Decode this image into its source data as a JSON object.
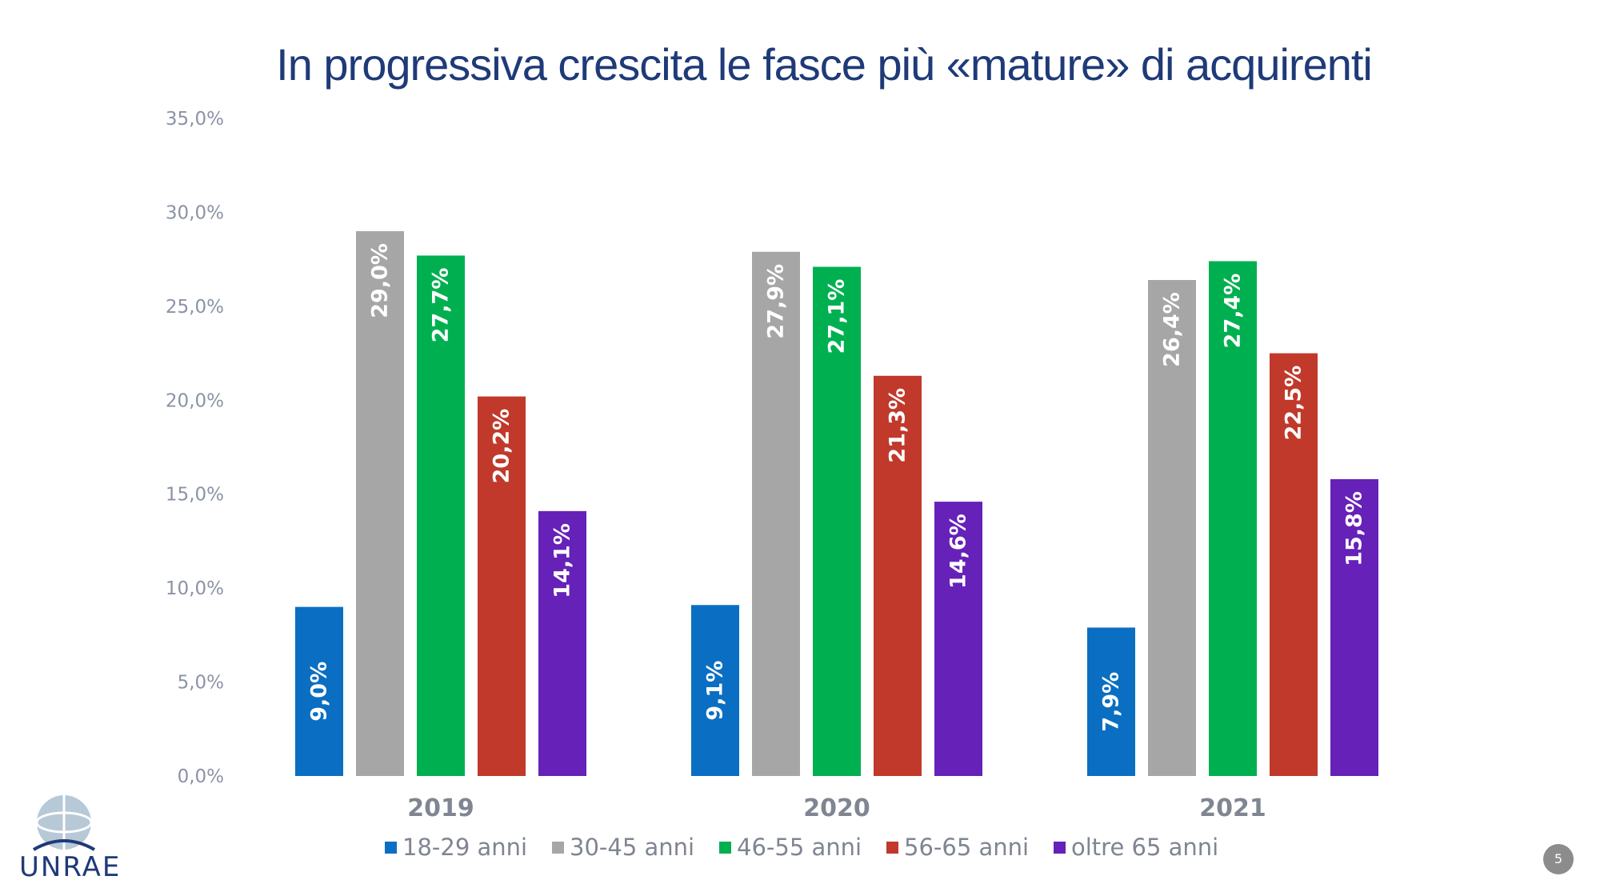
{
  "title": "In progressiva crescita le fasce più «mature» di acquirenti",
  "page_number": "5",
  "logo_text": "UNRAE",
  "chart_data": {
    "type": "bar",
    "title": "In progressiva crescita le fasce più «mature» di acquirenti",
    "categories": [
      "2019",
      "2020",
      "2021"
    ],
    "series": [
      {
        "name": "18-29 anni",
        "color": "#0a6fc2",
        "values": [
          9.0,
          9.1,
          7.9
        ],
        "labels": [
          "9,0%",
          "9,1%",
          "7,9%"
        ]
      },
      {
        "name": "30-45 anni",
        "color": "#a6a6a6",
        "values": [
          29.0,
          27.9,
          26.4
        ],
        "labels": [
          "29,0%",
          "27,9%",
          "26,4%"
        ]
      },
      {
        "name": "46-55 anni",
        "color": "#00b050",
        "values": [
          27.7,
          27.1,
          27.4
        ],
        "labels": [
          "27,7%",
          "27,1%",
          "27,4%"
        ]
      },
      {
        "name": "56-65 anni",
        "color": "#c0392b",
        "values": [
          20.2,
          21.3,
          22.5
        ],
        "labels": [
          "20,2%",
          "21,3%",
          "22,5%"
        ]
      },
      {
        "name": "oltre 65 anni",
        "color": "#6621b8",
        "values": [
          14.1,
          14.6,
          15.8
        ],
        "labels": [
          "14,1%",
          "14,6%",
          "15,8%"
        ]
      }
    ],
    "y_ticks": [
      "0,0%",
      "5,0%",
      "10,0%",
      "15,0%",
      "20,0%",
      "25,0%",
      "30,0%",
      "35,0%"
    ],
    "ylim": [
      0,
      35
    ],
    "grid": false,
    "legend": "bottom"
  }
}
